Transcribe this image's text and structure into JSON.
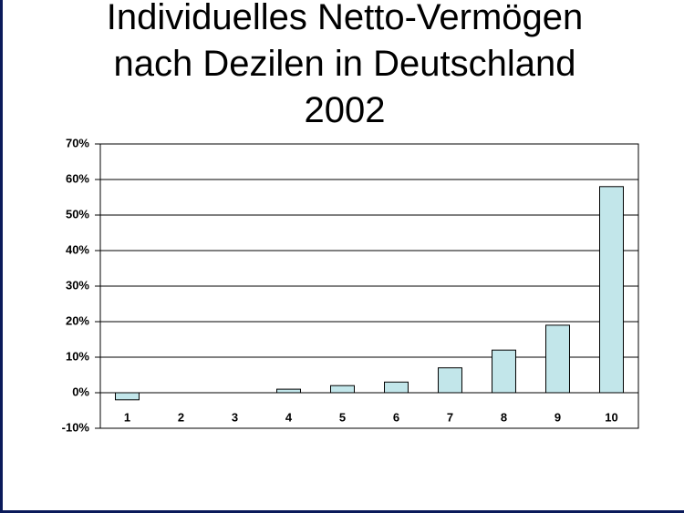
{
  "chart_data": {
    "type": "bar",
    "title": "Individuelles Netto-Vermögen nach Dezilen in Deutschland 2002",
    "categories": [
      "1",
      "2",
      "3",
      "4",
      "5",
      "6",
      "7",
      "8",
      "9",
      "10"
    ],
    "values": [
      -2,
      0,
      0,
      1,
      2,
      3,
      7,
      12,
      19,
      58
    ],
    "color": "#c2e6ea",
    "ylim": [
      -10,
      70
    ],
    "yticks": [
      {
        "value": -10,
        "label": "-10%"
      },
      {
        "value": 0,
        "label": "0%"
      },
      {
        "value": 10,
        "label": "10%"
      },
      {
        "value": 20,
        "label": "20%"
      },
      {
        "value": 30,
        "label": "30%"
      },
      {
        "value": 40,
        "label": "40%"
      },
      {
        "value": 50,
        "label": "50%"
      },
      {
        "value": 60,
        "label": "60%"
      },
      {
        "value": 70,
        "label": "70%"
      }
    ],
    "grid": true
  }
}
